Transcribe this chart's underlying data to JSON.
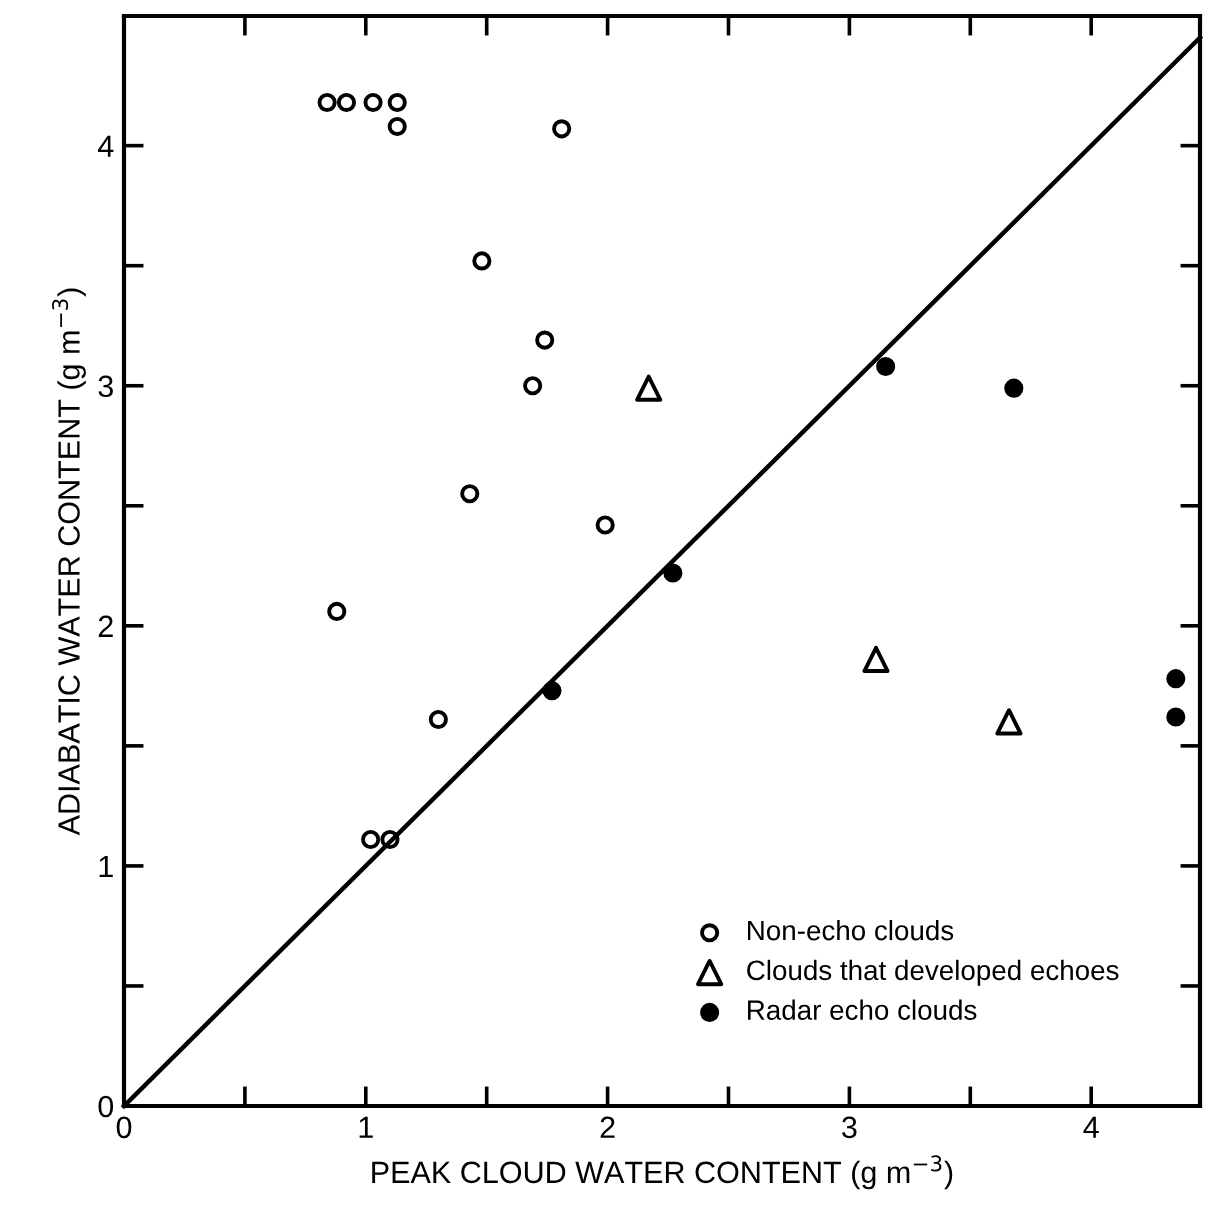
{
  "chart_data": {
    "type": "scatter",
    "xlabel": "PEAK CLOUD WATER CONTENT (g m$^{−3}$)",
    "ylabel": "ADIABATIC WATER CONTENT (g m$^{−3}$)",
    "xlim": [
      0,
      4.45
    ],
    "ylim": [
      0,
      4.54
    ],
    "xticks": [
      0,
      {
        "value": 0.5,
        "label": null
      },
      1,
      {
        "value": 1.5,
        "label": null
      },
      2,
      {
        "value": 2.5,
        "label": null
      },
      3,
      {
        "value": 3.5,
        "label": null
      },
      4
    ],
    "yticks": [
      0,
      {
        "value": 0.5,
        "label": null
      },
      1,
      {
        "value": 1.5,
        "label": null
      },
      2,
      {
        "value": 2.5,
        "label": null
      },
      3,
      {
        "value": 3.5,
        "label": null
      },
      4
    ],
    "grid": false,
    "legend": "bottom right",
    "series": [
      {
        "name": "Non-echo clouds",
        "marker": "circle",
        "color": "#000000",
        "x": [
          0.84,
          0.92,
          1.03,
          1.13,
          1.13,
          1.81,
          1.48,
          1.74,
          1.69,
          1.43,
          1.99,
          0.88,
          1.3,
          1.02,
          1.1
        ],
        "values": [
          4.18,
          4.18,
          4.18,
          4.18,
          4.08,
          4.07,
          3.52,
          3.19,
          3.0,
          2.55,
          2.42,
          2.06,
          1.61,
          1.11,
          1.11
        ]
      },
      {
        "name": "Clouds that developed echoes",
        "marker": "triangle",
        "color": "#000000",
        "x": [
          2.17,
          3.11,
          3.66
        ],
        "values": [
          2.99,
          1.86,
          1.6
        ]
      },
      {
        "name": "Radar echo clouds",
        "marker": "circle",
        "color": "#000000",
        "x": [
          1.77,
          2.27,
          3.15,
          3.68,
          4.35,
          4.35
        ],
        "values": [
          1.73,
          2.22,
          3.08,
          2.99,
          1.78,
          1.62
        ]
      },
      {
        "type": "line",
        "line_style": "solid",
        "color": "#000000",
        "x": [
          0,
          4.45
        ],
        "values": [
          0,
          4.45
        ]
      }
    ]
  }
}
